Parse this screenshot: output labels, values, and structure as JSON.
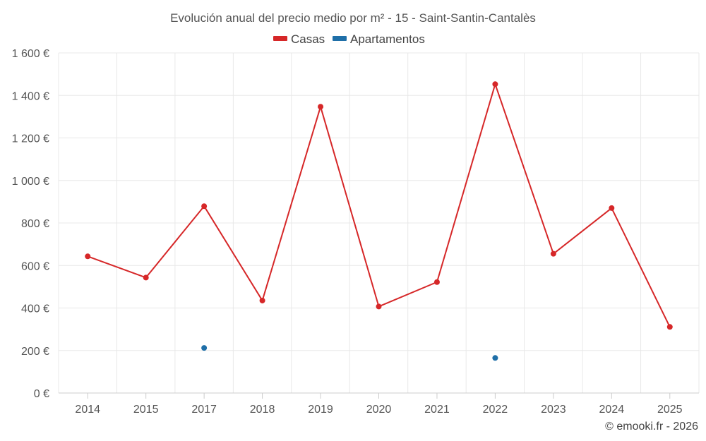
{
  "chart_data": {
    "type": "line",
    "title": "Evolución anual del precio medio por m² - 15 - Saint-Santin-Cantalès",
    "categories": [
      "2014",
      "2015",
      "2017",
      "2018",
      "2019",
      "2020",
      "2021",
      "2022",
      "2023",
      "2024",
      "2025"
    ],
    "series": [
      {
        "name": "Casas",
        "color": "#d62728",
        "values": [
          643,
          543,
          879,
          435,
          1347,
          407,
          522,
          1453,
          655,
          870,
          311
        ]
      },
      {
        "name": "Apartamentos",
        "color": "#1f6fa8",
        "values": [
          null,
          null,
          212,
          null,
          null,
          null,
          null,
          165,
          null,
          null,
          null
        ]
      }
    ],
    "ylim": [
      0,
      1600
    ],
    "yticks": [
      0,
      200,
      400,
      600,
      800,
      1000,
      1200,
      1400,
      1600
    ],
    "ytick_labels": [
      "0 €",
      "200 €",
      "400 €",
      "600 €",
      "800 €",
      "1 000 €",
      "1 200 €",
      "1 400 €",
      "1 600 €"
    ],
    "xlabel": "",
    "ylabel": "",
    "grid": true,
    "legend": "top-center"
  },
  "credit": "© emooki.fr - 2026"
}
